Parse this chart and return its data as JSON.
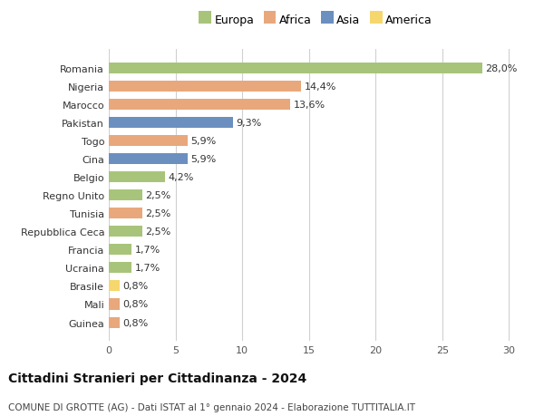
{
  "categories": [
    "Guinea",
    "Mali",
    "Brasile",
    "Ucraina",
    "Francia",
    "Repubblica Ceca",
    "Tunisia",
    "Regno Unito",
    "Belgio",
    "Cina",
    "Togo",
    "Pakistan",
    "Marocco",
    "Nigeria",
    "Romania"
  ],
  "values": [
    0.8,
    0.8,
    0.8,
    1.7,
    1.7,
    2.5,
    2.5,
    2.5,
    4.2,
    5.9,
    5.9,
    9.3,
    13.6,
    14.4,
    28.0
  ],
  "labels": [
    "0,8%",
    "0,8%",
    "0,8%",
    "1,7%",
    "1,7%",
    "2,5%",
    "2,5%",
    "2,5%",
    "4,2%",
    "5,9%",
    "5,9%",
    "9,3%",
    "13,6%",
    "14,4%",
    "28,0%"
  ],
  "colors": [
    "#e8a87c",
    "#e8a87c",
    "#f5d76e",
    "#a8c47a",
    "#a8c47a",
    "#a8c47a",
    "#e8a87c",
    "#a8c47a",
    "#a8c47a",
    "#6b8fbf",
    "#e8a87c",
    "#6b8fbf",
    "#e8a87c",
    "#e8a87c",
    "#a8c47a"
  ],
  "legend_labels": [
    "Europa",
    "Africa",
    "Asia",
    "America"
  ],
  "legend_colors": [
    "#a8c47a",
    "#e8a87c",
    "#6b8fbf",
    "#f5d76e"
  ],
  "title": "Cittadini Stranieri per Cittadinanza - 2024",
  "subtitle": "COMUNE DI GROTTE (AG) - Dati ISTAT al 1° gennaio 2024 - Elaborazione TUTTITALIA.IT",
  "xlim": [
    0,
    31
  ],
  "xticks": [
    0,
    5,
    10,
    15,
    20,
    25,
    30
  ],
  "background_color": "#ffffff",
  "grid_color": "#d0d0d0",
  "bar_height": 0.6,
  "title_fontsize": 10,
  "subtitle_fontsize": 7.5,
  "label_fontsize": 8,
  "tick_fontsize": 8,
  "legend_fontsize": 9
}
